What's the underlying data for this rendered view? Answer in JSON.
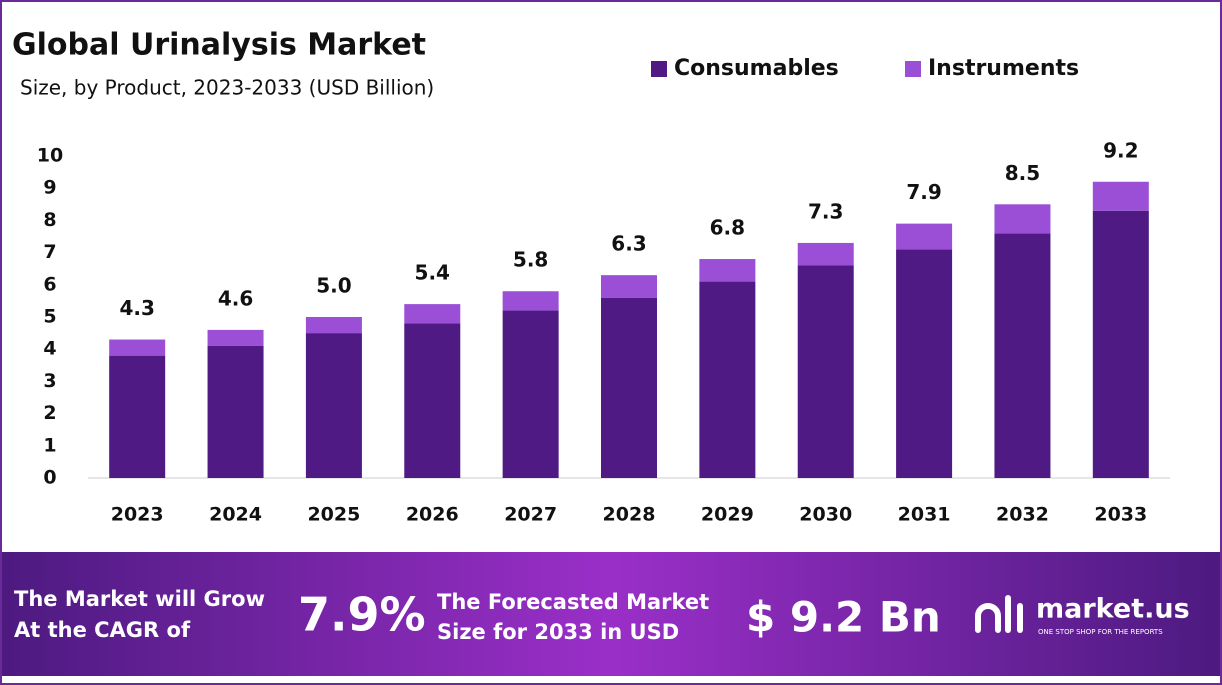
{
  "chart_data": {
    "type": "stacked-bar",
    "title": "Global Urinalysis Market",
    "subtitle": "Size, by Product, 2023-2033 (USD Billion)",
    "categories": [
      "2023",
      "2024",
      "2025",
      "2026",
      "2027",
      "2028",
      "2029",
      "2030",
      "2031",
      "2032",
      "2033"
    ],
    "series": [
      {
        "name": "Consumables",
        "color": "#4f1a84",
        "values": [
          3.8,
          4.1,
          4.5,
          4.8,
          5.2,
          5.6,
          6.1,
          6.6,
          7.1,
          7.6,
          8.3
        ]
      },
      {
        "name": "Instruments",
        "color": "#9b4fd6",
        "values": [
          0.5,
          0.5,
          0.5,
          0.6,
          0.6,
          0.7,
          0.7,
          0.7,
          0.8,
          0.9,
          0.9
        ]
      }
    ],
    "totals": [
      4.3,
      4.6,
      {
        "value": 5.0,
        "label": "5.0"
      },
      5.4,
      5.8,
      6.3,
      6.8,
      7.3,
      7.9,
      8.5,
      9.2
    ],
    "ylim": [
      0,
      10
    ],
    "yticks": [
      0,
      1,
      2,
      3,
      4,
      5,
      6,
      7,
      8,
      9,
      10
    ],
    "grid": false,
    "legend": "top-right"
  },
  "footer": {
    "cagr_text": [
      "The Market will Grow",
      "At the CAGR of"
    ],
    "cagr_value": "7.9%",
    "forecast_text": [
      "The Forecasted Market",
      "Size for 2033 in USD"
    ],
    "forecast_value": "$ 9.2 Bn",
    "brand": "market.us",
    "tagline": "ONE STOP SHOP FOR THE REPORTS"
  }
}
